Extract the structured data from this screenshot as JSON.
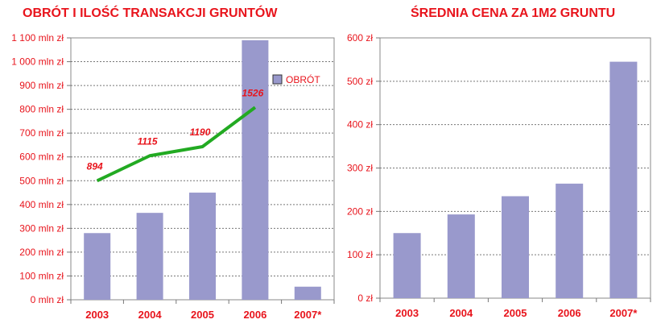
{
  "chart_data": [
    {
      "type": "bar",
      "title": "OBRÓT I ILOŚĆ TRANSAKCJI GRUNTÓW",
      "categories": [
        "2003",
        "2004",
        "2005",
        "2006",
        "2007*"
      ],
      "yticks": [
        "0 mln zł",
        "100 mln zł",
        "200 mln zł",
        "300 mln zł",
        "400 mln zł",
        "500 mln zł",
        "600 mln zł",
        "700 mln zł",
        "800 mln zł",
        "900 mln zł",
        "1 000 mln zł",
        "1 100 mln zł"
      ],
      "ylim": [
        0,
        1100
      ],
      "grid": true,
      "series": [
        {
          "name": "OBRÓT",
          "values": [
            280,
            365,
            450,
            1090,
            55
          ],
          "color": "#9999cc"
        }
      ],
      "line": {
        "points": [
          {
            "x": "2003",
            "y": 500,
            "label": "894"
          },
          {
            "x": "2004",
            "y": 605,
            "label": "1115"
          },
          {
            "x": "2005",
            "y": 643,
            "label": "1190"
          },
          {
            "x": "2006",
            "y": 808,
            "label": "1526"
          }
        ],
        "color": "#22aa22"
      },
      "legend": {
        "label": "OBRÓT",
        "position": "right"
      }
    },
    {
      "type": "bar",
      "title": "ŚREDNIA CENA ZA 1M2 GRUNTU",
      "categories": [
        "2003",
        "2004",
        "2005",
        "2006",
        "2007*"
      ],
      "yticks": [
        "0 zł",
        "100 zł",
        "200 zł",
        "300 zł",
        "400 zł",
        "500 zł",
        "600 zł"
      ],
      "ylim": [
        0,
        600
      ],
      "grid": true,
      "series": [
        {
          "values": [
            150,
            193,
            235,
            264,
            545
          ],
          "color": "#9999cc"
        }
      ]
    }
  ]
}
